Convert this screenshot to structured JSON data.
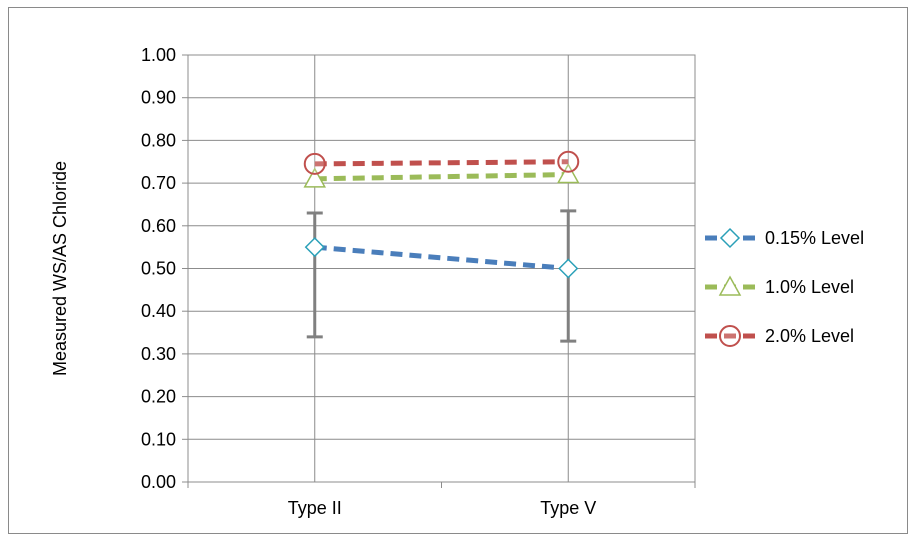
{
  "chart_data": {
    "type": "line",
    "title": "",
    "xlabel": "",
    "ylabel": "Measured WS/AS Chloride",
    "categories": [
      "Type II",
      "Type V"
    ],
    "ylim": [
      0,
      1
    ],
    "ytick_step": 0.1,
    "yticks": [
      "0.00",
      "0.10",
      "0.20",
      "0.30",
      "0.40",
      "0.50",
      "0.60",
      "0.70",
      "0.80",
      "0.90",
      "1.00"
    ],
    "grid": true,
    "legend_position": "right",
    "series": [
      {
        "name": "0.15% Level",
        "values": [
          0.55,
          0.5
        ],
        "color": "#4a7ebb",
        "marker": "diamond",
        "marker_color": "#2aa0b8",
        "error_low": [
          0.34,
          0.33
        ],
        "error_high": [
          0.63,
          0.635
        ]
      },
      {
        "name": "1.0% Level",
        "values": [
          0.71,
          0.72
        ],
        "color": "#9bbb59",
        "marker": "triangle",
        "marker_color": "#9bbb59"
      },
      {
        "name": "2.0% Level",
        "values": [
          0.745,
          0.75
        ],
        "color": "#c0504d",
        "marker": "circle",
        "marker_color": "#c0504d"
      }
    ],
    "error_bar_color": "#808080"
  }
}
